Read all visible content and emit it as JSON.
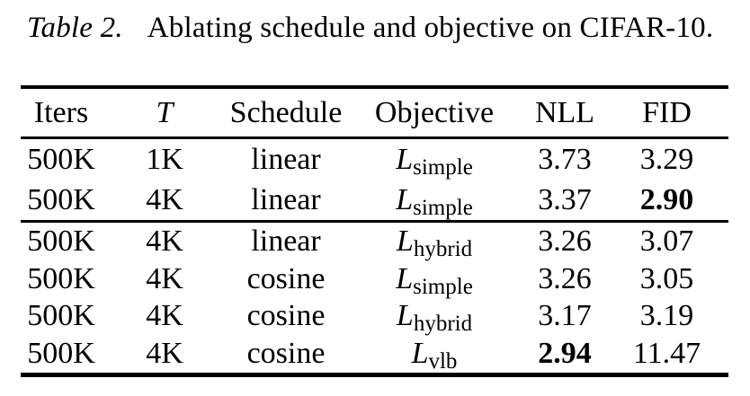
{
  "caption": {
    "label": "Table 2.",
    "text": "Ablating schedule and objective on CIFAR-10."
  },
  "table": {
    "columns": {
      "iters": "Iters",
      "t": "T",
      "schedule": "Schedule",
      "objective": "Objective",
      "nll": "NLL",
      "fid": "FID"
    },
    "sections": [
      {
        "rows": [
          {
            "iters": "500K",
            "t": "1K",
            "schedule": "linear",
            "objective": {
              "base": "L",
              "sub": "simple"
            },
            "nll": "3.73",
            "fid": "3.29",
            "nll_bold": false,
            "fid_bold": false
          },
          {
            "iters": "500K",
            "t": "4K",
            "schedule": "linear",
            "objective": {
              "base": "L",
              "sub": "simple"
            },
            "nll": "3.37",
            "fid": "2.90",
            "nll_bold": false,
            "fid_bold": true
          }
        ]
      },
      {
        "rows": [
          {
            "iters": "500K",
            "t": "4K",
            "schedule": "linear",
            "objective": {
              "base": "L",
              "sub": "hybrid"
            },
            "nll": "3.26",
            "fid": "3.07",
            "nll_bold": false,
            "fid_bold": false
          },
          {
            "iters": "500K",
            "t": "4K",
            "schedule": "cosine",
            "objective": {
              "base": "L",
              "sub": "simple"
            },
            "nll": "3.26",
            "fid": "3.05",
            "nll_bold": false,
            "fid_bold": false
          },
          {
            "iters": "500K",
            "t": "4K",
            "schedule": "cosine",
            "objective": {
              "base": "L",
              "sub": "hybrid"
            },
            "nll": "3.17",
            "fid": "3.19",
            "nll_bold": false,
            "fid_bold": false
          },
          {
            "iters": "500K",
            "t": "4K",
            "schedule": "cosine",
            "objective": {
              "base": "L",
              "sub": "vlb"
            },
            "nll": "2.94",
            "fid": "11.47",
            "nll_bold": true,
            "fid_bold": false
          }
        ]
      }
    ]
  }
}
